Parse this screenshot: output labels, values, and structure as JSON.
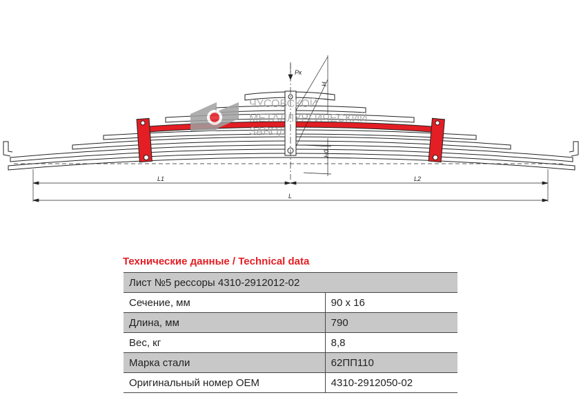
{
  "drawing": {
    "labels": {
      "force": "Pк",
      "height": "H",
      "height0": "H0",
      "l1": "L1",
      "l2": "L2",
      "l": "L"
    },
    "logo_text": [
      "ЧУСОВСКОЙ",
      "МЕТАЛЛУРГИЧЕСКИЙ",
      "ЗАВОД"
    ],
    "highlight_color": "#e31e24",
    "logo_gray": "#a0a0a0"
  },
  "section_title": "Технические данные / Technical data",
  "table": {
    "header": "Лист №5 рессоры 4310-2912012-02",
    "rows": [
      {
        "label": "Сечение, мм",
        "value": "90 x 16"
      },
      {
        "label": "Длина, мм",
        "value": "790"
      },
      {
        "label": "Вес, кг",
        "value": "8,8"
      },
      {
        "label": "Марка стали",
        "value": "62ПП110"
      },
      {
        "label": "Оригинальный номер OEM",
        "value": "4310-2912050-02"
      }
    ]
  }
}
